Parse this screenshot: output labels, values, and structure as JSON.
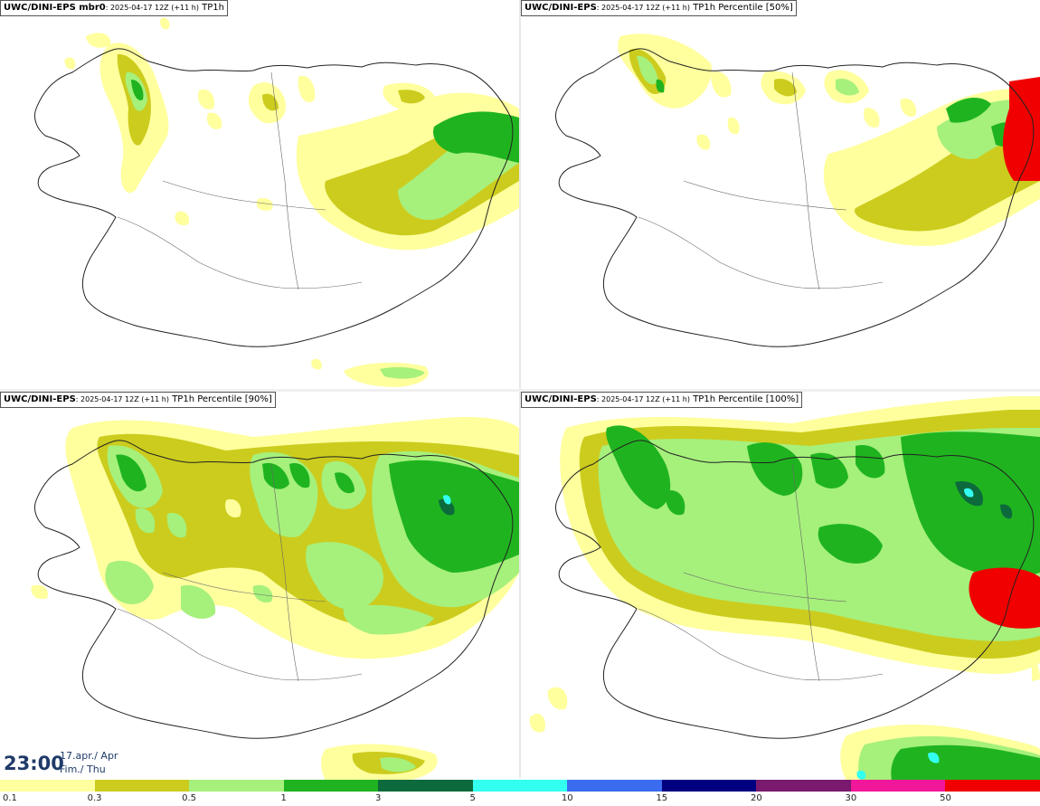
{
  "panels": [
    {
      "model": "UWC/DINI-EPS mbr0",
      "run": "2025-04-17 12Z (+11 h)",
      "field": "TP1h"
    },
    {
      "model": "UWC/DINI-EPS",
      "run": "2025-04-17 12Z (+11 h)",
      "field": "TP1h Percentile [50%]"
    },
    {
      "model": "UWC/DINI-EPS",
      "run": "2025-04-17 12Z (+11 h)",
      "field": "TP1h Percentile [90%]"
    },
    {
      "model": "UWC/DINI-EPS",
      "run": "2025-04-17 12Z (+11 h)",
      "field": "TP1h Percentile [100%]"
    }
  ],
  "valid_time": {
    "time": "23:00",
    "date": "17.apr./ Apr",
    "day": "Fim./ Thu"
  },
  "legend": {
    "labels": [
      "0.1",
      "0.3",
      "0.5",
      "1",
      "3",
      "5",
      "10",
      "15",
      "20",
      "30",
      "50"
    ],
    "colors": [
      "#ffff9e",
      "#cccc1e",
      "#a6f07c",
      "#1fb41f",
      "#0d6a3d",
      "#33fff0",
      "#3b6cf0",
      "#000080",
      "#7a1a6e",
      "#f0179a",
      "#f00000"
    ]
  },
  "map_colors": {
    "light_yellow": "#ffff9e",
    "olive": "#cccc1e",
    "light_green": "#a6f07c",
    "green": "#1fb41f",
    "dark_green": "#0d6a3d",
    "cyan": "#33fff0",
    "red": "#f00000",
    "coast": "#222222",
    "road": "#666666"
  }
}
